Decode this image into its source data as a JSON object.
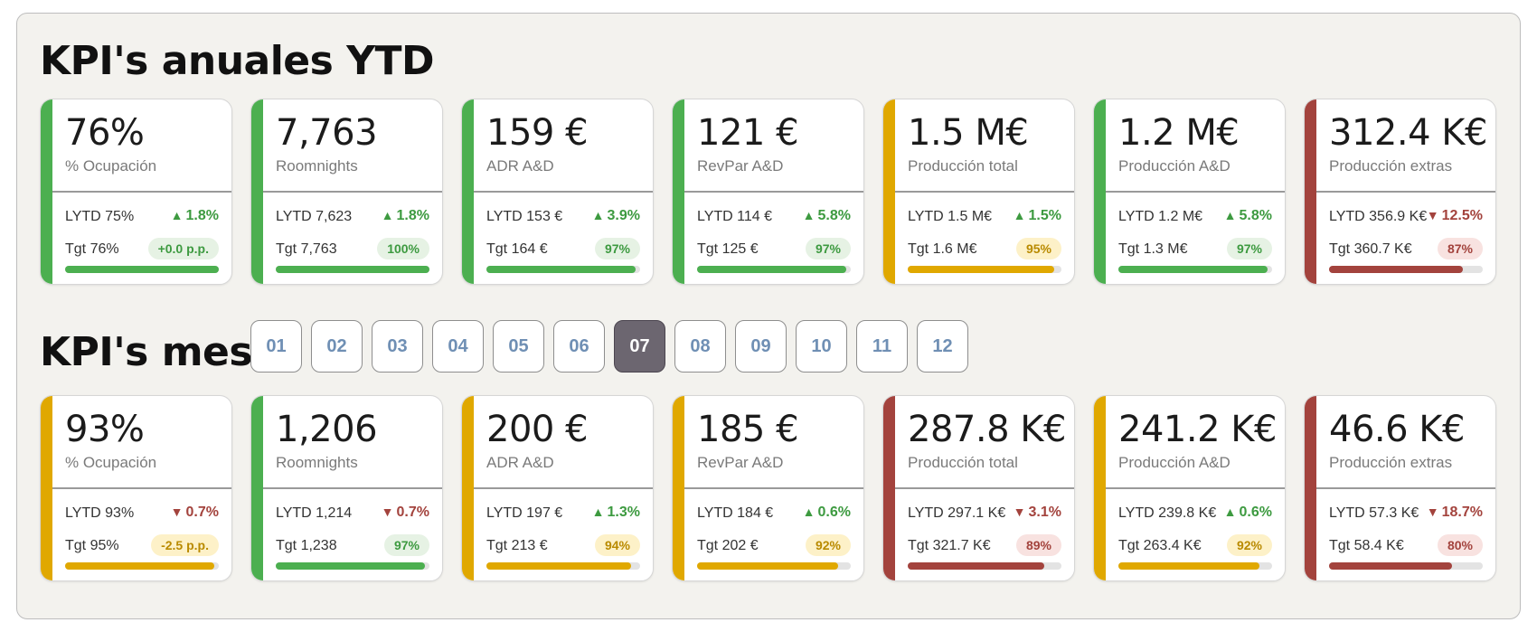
{
  "colors": {
    "green": "#4caf50",
    "yellow": "#e0a800",
    "red": "#a3433d",
    "green_text": "#3d9a40",
    "red_text": "#a3433d",
    "yellow_text": "#b98a00",
    "green_pill_bg": "#e6f2e4",
    "yellow_pill_bg": "#fdf1c8",
    "red_pill_bg": "#f8e2e0"
  },
  "ytd": {
    "title": "KPI's anuales YTD",
    "cards": [
      {
        "value": "76%",
        "label": "% Ocupación",
        "lytd": "LYTD 75%",
        "change": "1.8%",
        "direction": "up",
        "tgt": "Tgt 76%",
        "pill": "+0.0 p.p.",
        "progress": 1.0,
        "status": "green"
      },
      {
        "value": "7,763",
        "label": "Roomnights",
        "lytd": "LYTD 7,623",
        "change": "1.8%",
        "direction": "up",
        "tgt": "Tgt 7,763",
        "pill": "100%",
        "progress": 1.0,
        "status": "green"
      },
      {
        "value": "159 €",
        "label": "ADR A&D",
        "lytd": "LYTD 153 €",
        "change": "3.9%",
        "direction": "up",
        "tgt": "Tgt 164 €",
        "pill": "97%",
        "progress": 0.97,
        "status": "green"
      },
      {
        "value": "121 €",
        "label": "RevPar A&D",
        "lytd": "LYTD 114 €",
        "change": "5.8%",
        "direction": "up",
        "tgt": "Tgt 125 €",
        "pill": "97%",
        "progress": 0.97,
        "status": "green"
      },
      {
        "value": "1.5 M€",
        "label": "Producción total",
        "lytd": "LYTD 1.5 M€",
        "change": "1.5%",
        "direction": "up",
        "tgt": "Tgt 1.6 M€",
        "pill": "95%",
        "progress": 0.95,
        "status": "yellow"
      },
      {
        "value": "1.2 M€",
        "label": "Producción A&D",
        "lytd": "LYTD 1.2 M€",
        "change": "5.8%",
        "direction": "up",
        "tgt": "Tgt 1.3 M€",
        "pill": "97%",
        "progress": 0.97,
        "status": "green"
      },
      {
        "value": "312.4 K€",
        "label": "Producción extras",
        "lytd": "LYTD 356.9 K€",
        "change": "12.5%",
        "direction": "down",
        "tgt": "Tgt 360.7 K€",
        "pill": "87%",
        "progress": 0.87,
        "status": "red"
      }
    ]
  },
  "mes": {
    "title": "KPI's mes",
    "months": [
      "01",
      "02",
      "03",
      "04",
      "05",
      "06",
      "07",
      "08",
      "09",
      "10",
      "11",
      "12"
    ],
    "selected_month": "07",
    "cards": [
      {
        "value": "93%",
        "label": "% Ocupación",
        "lytd": "LYTD 93%",
        "change": "0.7%",
        "direction": "down",
        "tgt": "Tgt 95%",
        "pill": "-2.5 p.p.",
        "progress": 0.97,
        "status": "yellow"
      },
      {
        "value": "1,206",
        "label": "Roomnights",
        "lytd": "LYTD 1,214",
        "change": "0.7%",
        "direction": "down",
        "tgt": "Tgt 1,238",
        "pill": "97%",
        "progress": 0.97,
        "status": "green"
      },
      {
        "value": "200 €",
        "label": "ADR A&D",
        "lytd": "LYTD 197 €",
        "change": "1.3%",
        "direction": "up",
        "tgt": "Tgt 213 €",
        "pill": "94%",
        "progress": 0.94,
        "status": "yellow"
      },
      {
        "value": "185 €",
        "label": "RevPar A&D",
        "lytd": "LYTD 184 €",
        "change": "0.6%",
        "direction": "up",
        "tgt": "Tgt 202 €",
        "pill": "92%",
        "progress": 0.92,
        "status": "yellow"
      },
      {
        "value": "287.8 K€",
        "label": "Producción total",
        "lytd": "LYTD 297.1 K€",
        "change": "3.1%",
        "direction": "down",
        "tgt": "Tgt 321.7 K€",
        "pill": "89%",
        "progress": 0.89,
        "status": "red"
      },
      {
        "value": "241.2 K€",
        "label": "Producción A&D",
        "lytd": "LYTD 239.8 K€",
        "change": "0.6%",
        "direction": "up",
        "tgt": "Tgt 263.4 K€",
        "pill": "92%",
        "progress": 0.92,
        "status": "yellow"
      },
      {
        "value": "46.6 K€",
        "label": "Producción extras",
        "lytd": "LYTD 57.3 K€",
        "change": "18.7%",
        "direction": "down",
        "tgt": "Tgt 58.4 K€",
        "pill": "80%",
        "progress": 0.8,
        "status": "red"
      }
    ]
  }
}
